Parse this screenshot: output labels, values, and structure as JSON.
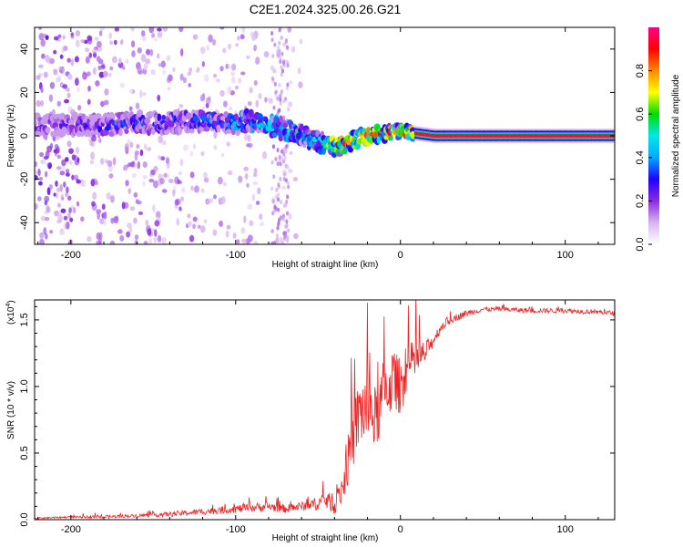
{
  "figure_title": "C2E1.2024.325.00.26.G21",
  "chart_data": [
    {
      "type": "heatmap",
      "panel": "spectrogram",
      "xlabel": "Height of straight line (km)",
      "ylabel": "Frequency (Hz)",
      "xlim": [
        -222,
        130
      ],
      "ylim": [
        -50,
        50
      ],
      "xticks": [
        -200,
        -100,
        0,
        100
      ],
      "xtick_labels": [
        "-200",
        "-100",
        "0",
        "100"
      ],
      "yticks": [
        -40,
        -20,
        0,
        20,
        40
      ],
      "ytick_labels": [
        "-40",
        "-20",
        "0",
        "20",
        "40"
      ],
      "colorbar": {
        "label": "Normalized spectral amplitude",
        "range": [
          0.0,
          1.0
        ],
        "ticks": [
          0.0,
          0.2,
          0.4,
          0.6,
          0.8
        ],
        "tick_labels": [
          "0.0",
          "0.2",
          "0.4",
          "0.6",
          "0.8"
        ],
        "colormap": [
          "#ffffff",
          "#d8b4f0",
          "#8a2be2",
          "#2200ff",
          "#00aaff",
          "#00e8e8",
          "#00dd00",
          "#ffff00",
          "#ff8800",
          "#ff0000",
          "#ff0088"
        ]
      },
      "ridge": {
        "x": [
          -222,
          -200,
          -180,
          -160,
          -140,
          -120,
          -100,
          -90,
          -80,
          -70,
          -60,
          -50,
          -45,
          -40,
          -35,
          -30,
          -25,
          -20,
          -10,
          0,
          10,
          20,
          40,
          60,
          80,
          100,
          130
        ],
        "frequency": [
          5,
          5,
          5,
          6,
          6,
          7,
          6,
          7,
          5,
          3,
          0,
          -3,
          -4,
          -5,
          -4,
          -3,
          -1,
          0,
          1,
          2,
          1,
          0,
          0,
          0,
          0,
          0,
          0
        ],
        "amplitude": [
          0.3,
          0.3,
          0.35,
          0.35,
          0.4,
          0.4,
          0.5,
          0.55,
          0.55,
          0.55,
          0.5,
          0.5,
          0.7,
          0.8,
          0.85,
          0.85,
          0.85,
          0.85,
          0.85,
          0.9,
          0.95,
          0.95,
          0.95,
          0.95,
          0.95,
          0.95,
          0.95
        ]
      },
      "background_scatter": {
        "x_range": [
          -222,
          -60
        ],
        "density_note": "scattered low amplitude noise across full frequency range"
      }
    },
    {
      "type": "line",
      "panel": "snr",
      "xlabel": "Height of straight line (km)",
      "ylabel": "SNR (10 * v/v)",
      "scale_label": "(x10",
      "scale_exponent": "4",
      "xlim": [
        -222,
        130
      ],
      "ylim": [
        0,
        1.65
      ],
      "xticks": [
        -200,
        -100,
        0,
        100
      ],
      "xtick_labels": [
        "-200",
        "-100",
        "0",
        "100"
      ],
      "yticks": [
        0.0,
        0.5,
        1.0,
        1.5
      ],
      "ytick_labels": [
        "0.0",
        "0.5",
        "1.0",
        "1.5"
      ],
      "line_color": "#ee2222",
      "series": [
        {
          "x": [
            -222,
            -200,
            -180,
            -160,
            -140,
            -120,
            -100,
            -80,
            -70,
            -60,
            -50,
            -45,
            -40,
            -35,
            -30,
            -25,
            -20,
            -15,
            -10,
            -5,
            0,
            5,
            10,
            15,
            20,
            25,
            30,
            40,
            50,
            60,
            80,
            100,
            120,
            130
          ],
          "y": [
            0.01,
            0.02,
            0.02,
            0.03,
            0.04,
            0.06,
            0.08,
            0.1,
            0.08,
            0.1,
            0.12,
            0.15,
            0.1,
            0.25,
            0.55,
            0.8,
            0.85,
            0.75,
            0.95,
            1.05,
            1.0,
            1.15,
            1.2,
            1.25,
            1.35,
            1.45,
            1.5,
            1.55,
            1.58,
            1.58,
            1.57,
            1.57,
            1.56,
            1.55
          ],
          "noise_amplitude": [
            0.01,
            0.01,
            0.02,
            0.02,
            0.03,
            0.04,
            0.05,
            0.06,
            0.05,
            0.06,
            0.08,
            0.12,
            0.1,
            0.25,
            0.35,
            0.45,
            0.5,
            0.4,
            0.45,
            0.4,
            0.35,
            0.3,
            0.25,
            0.15,
            0.08,
            0.06,
            0.05,
            0.04,
            0.03,
            0.03,
            0.03,
            0.03,
            0.03,
            0.03
          ]
        }
      ]
    }
  ]
}
